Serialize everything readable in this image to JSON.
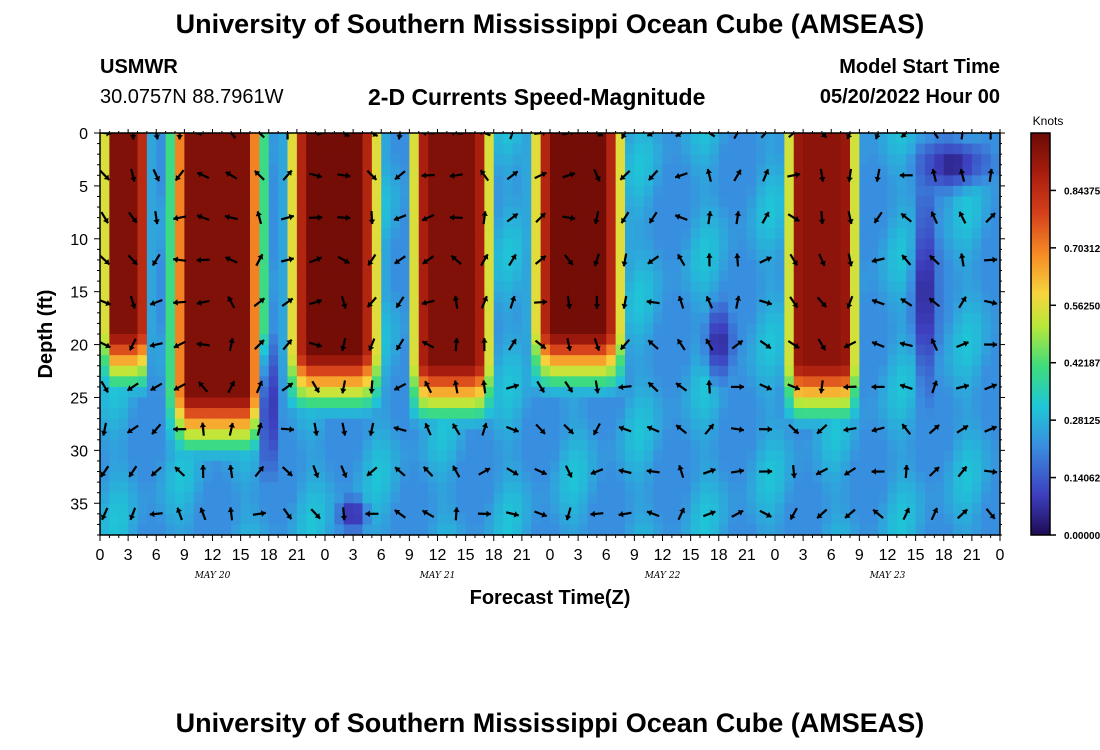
{
  "header": {
    "title": "University of Southern Mississippi Ocean Cube (AMSEAS)",
    "station": "USMWR",
    "coords": "30.0757N  88.7961W",
    "subtitle": "2-D Currents Speed-Magnitude",
    "model_start_label": "Model Start Time",
    "model_start_value": "05/20/2022 Hour 00"
  },
  "footer": {
    "title": "University of Southern Mississippi Ocean Cube (AMSEAS)"
  },
  "chart_data": {
    "type": "heatmap",
    "xlabel": "Forecast Time(Z)",
    "ylabel": "Depth (ft)",
    "x_range_hours": [
      0,
      96
    ],
    "y_range_ft": [
      0,
      38
    ],
    "x_tick_hours": [
      0,
      3,
      6,
      9,
      12,
      15,
      18,
      21,
      24,
      27,
      30,
      33,
      36,
      39,
      42,
      45,
      48,
      51,
      54,
      57,
      60,
      63,
      66,
      69,
      72,
      75,
      78,
      81,
      84,
      87,
      90,
      93,
      96
    ],
    "x_tick_labels": [
      "0",
      "3",
      "6",
      "9",
      "12",
      "15",
      "18",
      "21",
      "0",
      "3",
      "6",
      "9",
      "12",
      "15",
      "18",
      "21",
      "0",
      "3",
      "6",
      "9",
      "12",
      "15",
      "18",
      "21",
      "0",
      "3",
      "6",
      "9",
      "12",
      "15",
      "18",
      "21",
      "0"
    ],
    "day_labels": [
      {
        "hour": 12,
        "label": "MAY 20"
      },
      {
        "hour": 36,
        "label": "MAY 21"
      },
      {
        "hour": 60,
        "label": "MAY 22"
      },
      {
        "hour": 84,
        "label": "MAY 23"
      }
    ],
    "y_ticks": [
      0,
      5,
      10,
      15,
      20,
      25,
      30,
      35
    ],
    "colorbar": {
      "title": "Knots",
      "min": 0.0,
      "max": 0.984375,
      "ticks": [
        0.84375,
        0.70312,
        0.5625,
        0.42187,
        0.28125,
        0.14062,
        0.0
      ],
      "tick_labels": [
        "0.84375",
        "0.70312",
        "0.56250",
        "0.42187",
        "0.28125",
        "0.14062",
        "0.00000"
      ]
    },
    "high_speed_cores": [
      {
        "start_h": 0.5,
        "end_h": 5,
        "bottom_ft": 22,
        "peak": 0.95
      },
      {
        "start_h": 8,
        "end_h": 17,
        "bottom_ft": 28,
        "peak": 0.95
      },
      {
        "start_h": 20.5,
        "end_h": 29.5,
        "bottom_ft": 24,
        "peak": 0.97
      },
      {
        "start_h": 33.5,
        "end_h": 41.5,
        "bottom_ft": 25,
        "peak": 0.95
      },
      {
        "start_h": 46.5,
        "end_h": 55.5,
        "bottom_ft": 22,
        "peak": 0.97
      },
      {
        "start_h": 73.5,
        "end_h": 80.5,
        "bottom_ft": 25,
        "peak": 0.93
      }
    ],
    "low_speed_zones": [
      {
        "center_h": 18,
        "center_ft": 26,
        "width_h": 1.5,
        "height_ft": 16
      },
      {
        "center_h": 27,
        "center_ft": 36,
        "width_h": 2,
        "height_ft": 4
      },
      {
        "center_h": 88,
        "center_ft": 15,
        "width_h": 1.8,
        "height_ft": 25
      },
      {
        "center_h": 91,
        "center_ft": 3,
        "width_h": 5,
        "height_ft": 6
      },
      {
        "center_h": 66,
        "center_ft": 20,
        "width_h": 2,
        "height_ft": 10
      }
    ],
    "arrow_depths_ft": [
      0,
      4,
      8,
      12,
      16,
      20,
      24,
      28,
      32,
      36
    ],
    "arrow_hours": [
      0.5,
      3.5,
      6,
      8.5,
      11,
      14,
      17,
      20,
      23,
      26,
      29,
      32,
      35,
      38,
      41,
      44,
      47,
      50,
      53,
      56,
      59,
      62,
      65,
      68,
      71,
      74,
      77,
      80,
      83,
      86,
      89,
      92,
      95
    ]
  }
}
